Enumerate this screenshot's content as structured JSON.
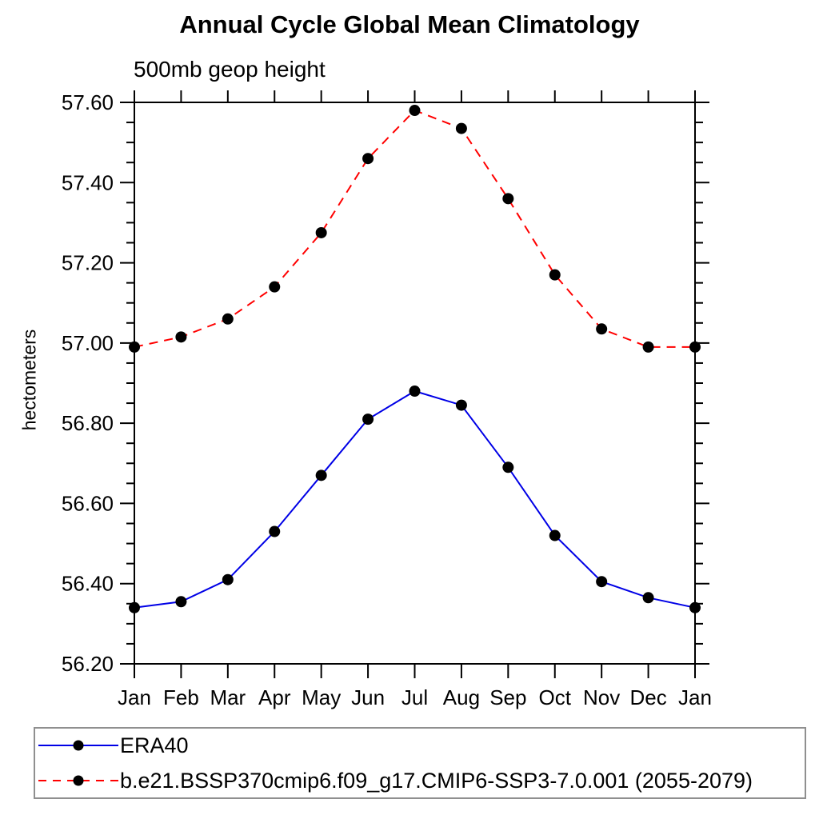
{
  "chart_data": {
    "type": "line",
    "title": "Annual Cycle Global Mean Climatology",
    "subtitle": "500mb geop height",
    "ylabel": "hectometers",
    "categories": [
      "Jan",
      "Feb",
      "Mar",
      "Apr",
      "May",
      "Jun",
      "Jul",
      "Aug",
      "Sep",
      "Oct",
      "Nov",
      "Dec",
      "Jan"
    ],
    "ylim": [
      56.2,
      57.6
    ],
    "ytick_major": 0.2,
    "ytick_minor": 0.05,
    "ytick_labels": [
      "56.20",
      "56.40",
      "56.60",
      "56.80",
      "57.00",
      "57.20",
      "57.40",
      "57.60"
    ],
    "grid": false,
    "legend_position": "bottom-left",
    "axis_color": "#000000",
    "marker": "filled-circle",
    "marker_color": "#000000",
    "series": [
      {
        "name": "ERA40",
        "color": "#0000e6",
        "line_style": "solid",
        "values": [
          56.34,
          56.355,
          56.41,
          56.53,
          56.67,
          56.81,
          56.88,
          56.845,
          56.69,
          56.52,
          56.405,
          56.365,
          56.34
        ]
      },
      {
        "name": "b.e21.BSSP370cmip6.f09_g17.CMIP6-SSP3-7.0.001 (2055-2079)",
        "color": "#ff0000",
        "line_style": "dashed",
        "values": [
          56.99,
          57.015,
          57.06,
          57.14,
          57.275,
          57.46,
          57.58,
          57.535,
          57.36,
          57.17,
          57.035,
          56.99,
          56.99
        ]
      }
    ]
  }
}
